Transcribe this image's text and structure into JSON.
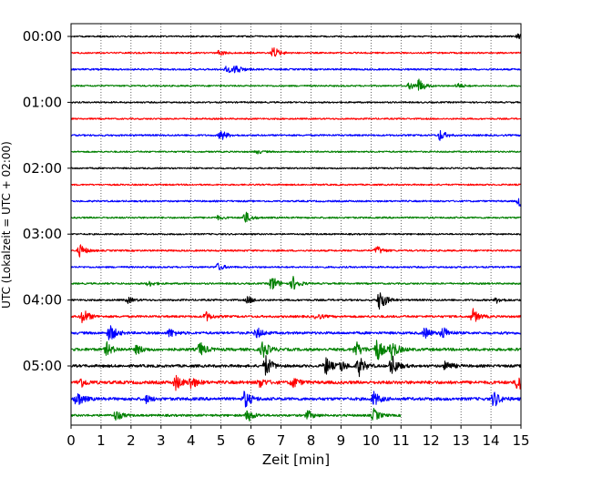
{
  "chart_data": {
    "type": "line",
    "xlabel": "Zeit  [min]",
    "ylabel": "UTC (Lokalzeit = UTC + 02:00)",
    "xlim": [
      0,
      15
    ],
    "x_ticks": [
      "0",
      "1",
      "2",
      "3",
      "4",
      "5",
      "6",
      "7",
      "8",
      "9",
      "10",
      "11",
      "12",
      "13",
      "14",
      "15"
    ],
    "y_ticks": [
      "00:00",
      "01:00",
      "02:00",
      "03:00",
      "04:00",
      "05:00"
    ],
    "grid_x": true,
    "trace_interval_min": 15,
    "trace_colors": [
      "#000000",
      "#ff0000",
      "#0000ff",
      "#008000"
    ],
    "traces": [
      {
        "start": "00:00",
        "color": "#000000",
        "end_min": 15,
        "noise": 0.9,
        "events": [
          {
            "t": 14.9,
            "amp": 3
          }
        ]
      },
      {
        "start": "00:15",
        "color": "#ff0000",
        "end_min": 15,
        "noise": 0.9,
        "events": [
          {
            "t": 4.95,
            "amp": 3
          },
          {
            "t": 6.75,
            "amp": 7
          }
        ]
      },
      {
        "start": "00:30",
        "color": "#0000ff",
        "end_min": 15,
        "noise": 1.0,
        "events": [
          {
            "t": 5.5,
            "amp": 5
          },
          {
            "t": 5.2,
            "amp": 4
          }
        ]
      },
      {
        "start": "00:45",
        "color": "#008000",
        "end_min": 15,
        "noise": 0.9,
        "events": [
          {
            "t": 11.3,
            "amp": 4
          },
          {
            "t": 11.6,
            "amp": 7
          },
          {
            "t": 12.9,
            "amp": 3
          }
        ]
      },
      {
        "start": "01:00",
        "color": "#000000",
        "end_min": 15,
        "noise": 0.9,
        "events": []
      },
      {
        "start": "01:15",
        "color": "#ff0000",
        "end_min": 15,
        "noise": 0.9,
        "events": []
      },
      {
        "start": "01:30",
        "color": "#0000ff",
        "end_min": 15,
        "noise": 1.0,
        "events": [
          {
            "t": 5.0,
            "amp": 6
          },
          {
            "t": 12.3,
            "amp": 6
          }
        ]
      },
      {
        "start": "01:45",
        "color": "#008000",
        "end_min": 15,
        "noise": 0.9,
        "events": [
          {
            "t": 6.2,
            "amp": 2
          }
        ]
      },
      {
        "start": "02:00",
        "color": "#000000",
        "end_min": 15,
        "noise": 0.9,
        "events": []
      },
      {
        "start": "02:15",
        "color": "#ff0000",
        "end_min": 15,
        "noise": 0.9,
        "events": []
      },
      {
        "start": "02:30",
        "color": "#0000ff",
        "end_min": 15,
        "noise": 1.0,
        "events": [
          {
            "t": 14.95,
            "amp": 6
          }
        ]
      },
      {
        "start": "02:45",
        "color": "#008000",
        "end_min": 15,
        "noise": 1.0,
        "events": [
          {
            "t": 5.8,
            "amp": 7
          },
          {
            "t": 4.9,
            "amp": 2
          }
        ]
      },
      {
        "start": "03:00",
        "color": "#000000",
        "end_min": 15,
        "noise": 0.9,
        "events": []
      },
      {
        "start": "03:15",
        "color": "#ff0000",
        "end_min": 15,
        "noise": 1.0,
        "events": [
          {
            "t": 0.3,
            "amp": 7
          },
          {
            "t": 10.2,
            "amp": 5
          }
        ]
      },
      {
        "start": "03:30",
        "color": "#0000ff",
        "end_min": 15,
        "noise": 1.0,
        "events": [
          {
            "t": 4.9,
            "amp": 4
          }
        ]
      },
      {
        "start": "03:45",
        "color": "#008000",
        "end_min": 15,
        "noise": 1.0,
        "events": [
          {
            "t": 6.7,
            "amp": 9
          },
          {
            "t": 7.4,
            "amp": 8
          },
          {
            "t": 2.6,
            "amp": 3
          }
        ]
      },
      {
        "start": "04:00",
        "color": "#000000",
        "end_min": 15,
        "noise": 1.1,
        "events": [
          {
            "t": 10.3,
            "amp": 13
          },
          {
            "t": 5.9,
            "amp": 4
          },
          {
            "t": 1.9,
            "amp": 3
          },
          {
            "t": 14.2,
            "amp": 3
          }
        ]
      },
      {
        "start": "04:15",
        "color": "#ff0000",
        "end_min": 15,
        "noise": 1.3,
        "events": [
          {
            "t": 0.4,
            "amp": 9
          },
          {
            "t": 4.5,
            "amp": 5
          },
          {
            "t": 13.4,
            "amp": 8
          },
          {
            "t": 8.2,
            "amp": 3
          }
        ]
      },
      {
        "start": "04:30",
        "color": "#0000ff",
        "end_min": 15,
        "noise": 1.5,
        "events": [
          {
            "t": 1.3,
            "amp": 10
          },
          {
            "t": 3.3,
            "amp": 5
          },
          {
            "t": 6.2,
            "amp": 6
          },
          {
            "t": 11.8,
            "amp": 6
          },
          {
            "t": 12.4,
            "amp": 7
          }
        ]
      },
      {
        "start": "04:45",
        "color": "#008000",
        "end_min": 15,
        "noise": 1.7,
        "events": [
          {
            "t": 1.2,
            "amp": 7
          },
          {
            "t": 4.3,
            "amp": 8
          },
          {
            "t": 6.4,
            "amp": 10
          },
          {
            "t": 9.5,
            "amp": 9
          },
          {
            "t": 10.2,
            "amp": 13
          },
          {
            "t": 10.7,
            "amp": 11
          },
          {
            "t": 2.2,
            "amp": 5
          }
        ]
      },
      {
        "start": "05:00",
        "color": "#000000",
        "end_min": 15,
        "noise": 1.6,
        "events": [
          {
            "t": 6.5,
            "amp": 12
          },
          {
            "t": 8.5,
            "amp": 10
          },
          {
            "t": 9.6,
            "amp": 11
          },
          {
            "t": 10.7,
            "amp": 12
          },
          {
            "t": 12.5,
            "amp": 6
          },
          {
            "t": 9.0,
            "amp": 6
          }
        ]
      },
      {
        "start": "05:15",
        "color": "#ff0000",
        "end_min": 15,
        "noise": 1.9,
        "events": [
          {
            "t": 0.3,
            "amp": 6
          },
          {
            "t": 3.5,
            "amp": 8
          },
          {
            "t": 4.0,
            "amp": 7
          },
          {
            "t": 6.3,
            "amp": 5
          },
          {
            "t": 7.4,
            "amp": 6
          },
          {
            "t": 14.9,
            "amp": 10
          }
        ]
      },
      {
        "start": "05:30",
        "color": "#0000ff",
        "end_min": 15,
        "noise": 1.8,
        "events": [
          {
            "t": 0.2,
            "amp": 9
          },
          {
            "t": 5.8,
            "amp": 10
          },
          {
            "t": 10.1,
            "amp": 8
          },
          {
            "t": 14.1,
            "amp": 9
          },
          {
            "t": 2.5,
            "amp": 4
          }
        ]
      },
      {
        "start": "05:45",
        "color": "#008000",
        "end_min": 11.0,
        "noise": 1.3,
        "events": [
          {
            "t": 1.5,
            "amp": 6
          },
          {
            "t": 5.9,
            "amp": 7
          },
          {
            "t": 7.9,
            "amp": 5
          },
          {
            "t": 10.1,
            "amp": 7
          }
        ]
      }
    ]
  }
}
